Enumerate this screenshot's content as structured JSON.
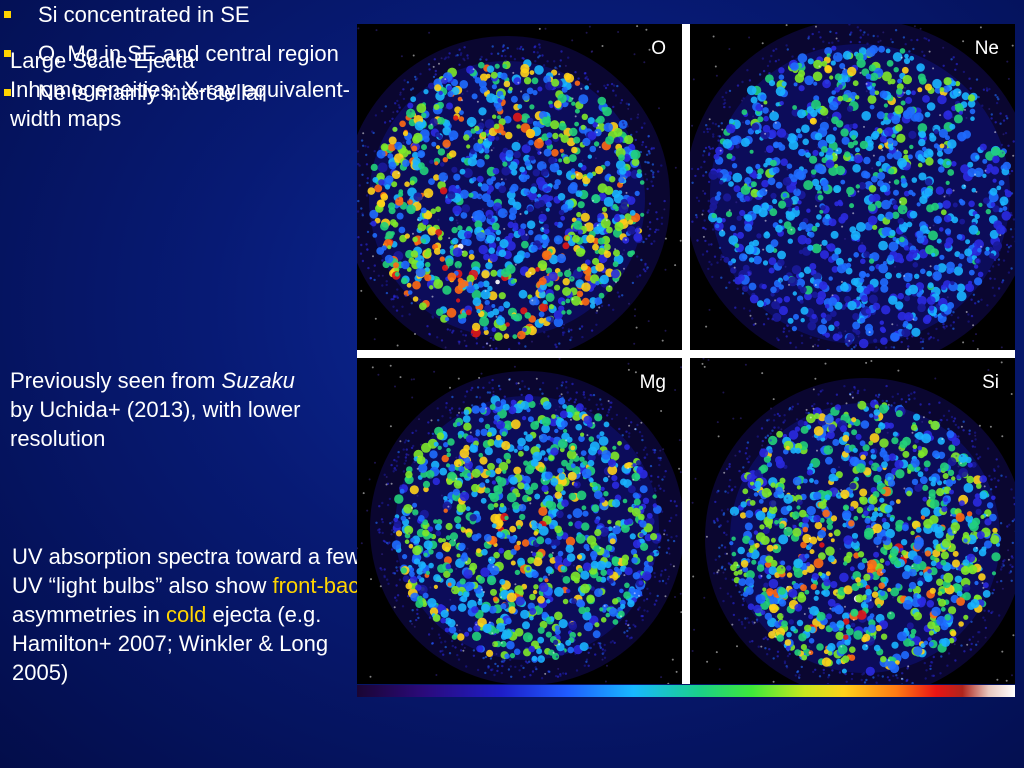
{
  "heading": "Large Scale Ejecta Inhomogeneities: X-ray equivalent-width maps",
  "bullets": [
    "Si concentrated in SE",
    "O, Mg in SE and central region",
    "Ne is mainly interstellar"
  ],
  "previous": {
    "prefix": "Previously seen from ",
    "italic": "Suzaku",
    "suffix": " by Uchida+ (2013), with lower resolution"
  },
  "uv": {
    "part1": "UV absorption spectra toward a few UV “light bulbs” also show ",
    "highlight1": "front-back",
    "part2": " asymmetries in ",
    "highlight2": "cold",
    "part3": " ejecta (e.g. Hamilton+ 2007; Winkler & Long 2005)"
  },
  "maps": [
    {
      "label": "O"
    },
    {
      "label": "Ne"
    },
    {
      "label": "Mg"
    },
    {
      "label": "Si"
    }
  ],
  "colors": {
    "background": "#071a74",
    "text": "#ffffff",
    "highlight": "#ffd400",
    "bullet": "#ffd400"
  }
}
